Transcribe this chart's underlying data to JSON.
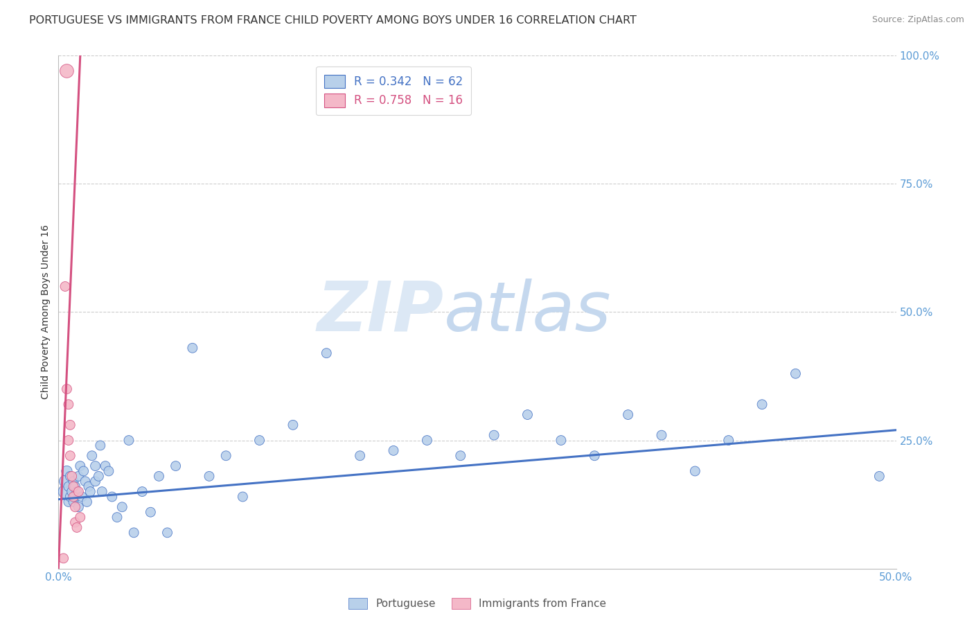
{
  "title": "PORTUGUESE VS IMMIGRANTS FROM FRANCE CHILD POVERTY AMONG BOYS UNDER 16 CORRELATION CHART",
  "source": "Source: ZipAtlas.com",
  "ylabel": "Child Poverty Among Boys Under 16",
  "xlim": [
    0.0,
    0.5
  ],
  "ylim": [
    0.0,
    1.0
  ],
  "blue_color": "#b8d0ea",
  "blue_line_color": "#4472c4",
  "pink_color": "#f4b8c8",
  "pink_line_color": "#d45080",
  "legend_blue_label": "R = 0.342   N = 62",
  "legend_pink_label": "R = 0.758   N = 16",
  "title_fontsize": 11.5,
  "axis_label_fontsize": 10,
  "tick_fontsize": 11,
  "blue_scatter_x": [
    0.004,
    0.004,
    0.005,
    0.006,
    0.006,
    0.007,
    0.007,
    0.008,
    0.009,
    0.009,
    0.01,
    0.01,
    0.011,
    0.012,
    0.012,
    0.013,
    0.014,
    0.015,
    0.016,
    0.017,
    0.018,
    0.019,
    0.02,
    0.022,
    0.022,
    0.024,
    0.025,
    0.026,
    0.028,
    0.03,
    0.032,
    0.035,
    0.038,
    0.042,
    0.045,
    0.05,
    0.055,
    0.06,
    0.065,
    0.07,
    0.08,
    0.09,
    0.1,
    0.11,
    0.12,
    0.14,
    0.16,
    0.18,
    0.2,
    0.22,
    0.24,
    0.26,
    0.28,
    0.3,
    0.32,
    0.34,
    0.36,
    0.38,
    0.4,
    0.42,
    0.44,
    0.49
  ],
  "blue_scatter_y": [
    0.15,
    0.17,
    0.19,
    0.13,
    0.16,
    0.14,
    0.18,
    0.15,
    0.13,
    0.17,
    0.16,
    0.14,
    0.15,
    0.18,
    0.12,
    0.2,
    0.14,
    0.19,
    0.17,
    0.13,
    0.16,
    0.15,
    0.22,
    0.2,
    0.17,
    0.18,
    0.24,
    0.15,
    0.2,
    0.19,
    0.14,
    0.1,
    0.12,
    0.25,
    0.07,
    0.15,
    0.11,
    0.18,
    0.07,
    0.2,
    0.43,
    0.18,
    0.22,
    0.14,
    0.25,
    0.28,
    0.42,
    0.22,
    0.23,
    0.25,
    0.22,
    0.26,
    0.3,
    0.25,
    0.22,
    0.3,
    0.26,
    0.19,
    0.25,
    0.32,
    0.38,
    0.18
  ],
  "blue_scatter_size": [
    200,
    150,
    120,
    100,
    100,
    100,
    100,
    100,
    100,
    100,
    100,
    100,
    100,
    100,
    100,
    100,
    100,
    100,
    100,
    100,
    100,
    100,
    100,
    100,
    100,
    100,
    100,
    100,
    100,
    100,
    100,
    100,
    100,
    100,
    100,
    100,
    100,
    100,
    100,
    100,
    100,
    100,
    100,
    100,
    100,
    100,
    100,
    100,
    100,
    100,
    100,
    100,
    100,
    100,
    100,
    100,
    100,
    100,
    100,
    100,
    100,
    100
  ],
  "pink_scatter_x": [
    0.003,
    0.004,
    0.005,
    0.005,
    0.006,
    0.006,
    0.007,
    0.007,
    0.008,
    0.009,
    0.009,
    0.01,
    0.01,
    0.011,
    0.012,
    0.013
  ],
  "pink_scatter_y": [
    0.02,
    0.55,
    0.97,
    0.35,
    0.32,
    0.25,
    0.28,
    0.22,
    0.18,
    0.16,
    0.14,
    0.12,
    0.09,
    0.08,
    0.15,
    0.1
  ],
  "pink_scatter_size": [
    100,
    100,
    200,
    100,
    100,
    100,
    100,
    100,
    100,
    100,
    100,
    100,
    100,
    100,
    100,
    100
  ],
  "blue_trendline_x": [
    0.0,
    0.5
  ],
  "blue_trendline_y": [
    0.135,
    0.27
  ],
  "pink_trendline_x": [
    0.0,
    0.013
  ],
  "pink_trendline_y": [
    0.0,
    1.0
  ],
  "background_color": "#ffffff",
  "grid_color": "#cccccc",
  "axis_color": "#bbbbbb",
  "tick_label_color": "#5b9bd5",
  "source_color": "#888888",
  "ylabel_color": "#333333",
  "title_color": "#333333",
  "watermark_zip_color": "#dce8f5",
  "watermark_atlas_color": "#c5d8ee"
}
